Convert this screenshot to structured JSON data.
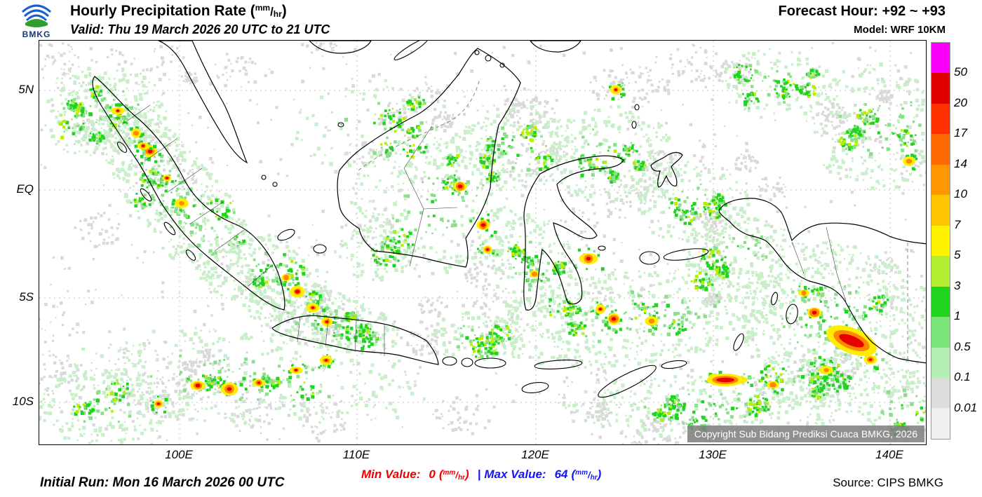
{
  "header": {
    "logo_text": "BMKG",
    "title": "Hourly Precipitation Rate ",
    "unit_open": "(",
    "unit_numerator": "mm",
    "unit_slash": "/",
    "unit_denominator": "hr",
    "unit_close": ")",
    "valid": "Valid: Thu 19 March 2026 20 UTC to 21 UTC",
    "forecast_hour": "Forecast Hour: +92 ~ +93",
    "model": "Model: WRF 10KM"
  },
  "map": {
    "lat_labels": [
      "5N",
      "EQ",
      "5S",
      "10S"
    ],
    "lon_labels": [
      "100E",
      "110E",
      "120E",
      "130E",
      "140E"
    ],
    "copyright": "Copyright Sub Bidang Prediksi Cuaca BMKG, 2026"
  },
  "legend": {
    "boundary_values": [
      "50",
      "20",
      "17",
      "14",
      "10",
      "7",
      "5",
      "3",
      "1",
      "0.5",
      "0.1",
      "0.01"
    ],
    "colors_top_to_bottom": [
      "#fa00fa",
      "#e00000",
      "#ff3000",
      "#ff6a00",
      "#ff9800",
      "#ffc400",
      "#fff200",
      "#b4ee33",
      "#1fd41f",
      "#7ae67a",
      "#b4eeb4",
      "#dcdcdc",
      "#efefef"
    ]
  },
  "footer": {
    "initial_run": "Initial Run: Mon 16 March 2026 00 UTC",
    "min_label": "Min Value:",
    "min_value": "0",
    "max_label": "Max Value:",
    "max_value": "64",
    "separator": "|",
    "unit_open": "(",
    "unit_numerator": "mm",
    "unit_slash": "/",
    "unit_denominator": "hr",
    "unit_close": ")",
    "source": "Source: CIPS BMKG",
    "min_color": "#f00000",
    "max_color": "#1414ff"
  }
}
